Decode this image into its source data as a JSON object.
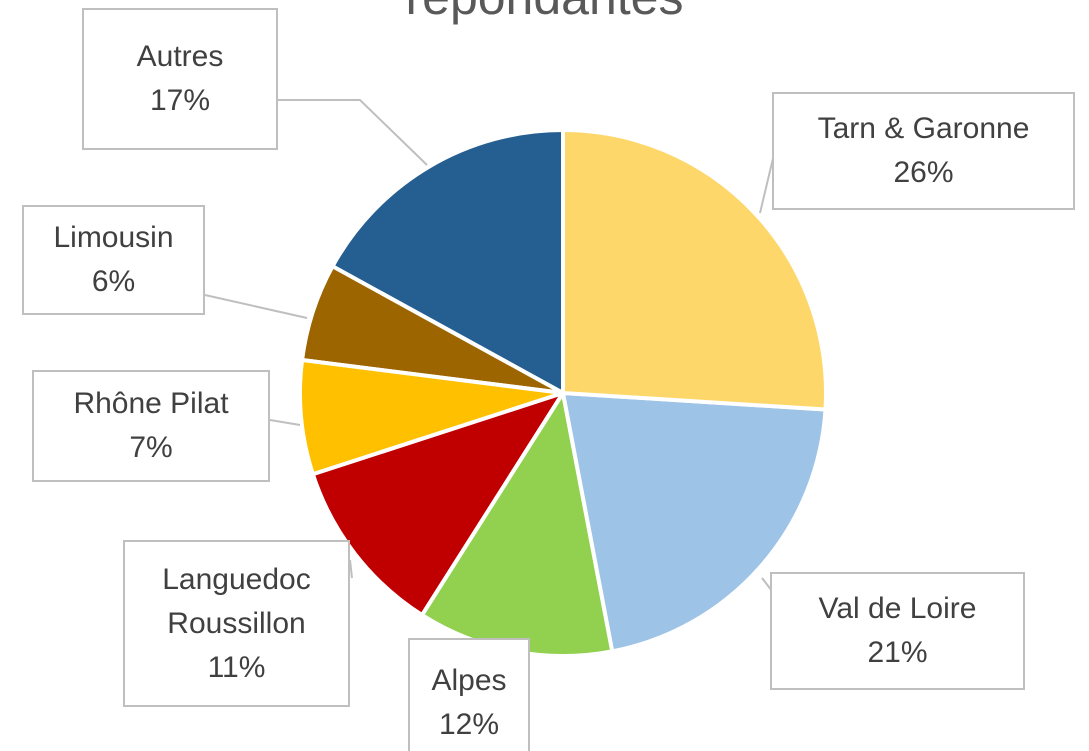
{
  "chart_data": {
    "type": "pie",
    "title": "répondantes",
    "categories": [
      "Tarn & Garonne",
      "Val de Loire",
      "Alpes",
      "Languedoc Roussillon",
      "Rhône Pilat",
      "Limousin",
      "Autres"
    ],
    "values": [
      26,
      21,
      12,
      11,
      7,
      6,
      17
    ],
    "value_labels": [
      "26%",
      "21%",
      "12%",
      "11%",
      "7%",
      "6%",
      "17%"
    ],
    "colors": [
      "#fed76b",
      "#9dc3e6",
      "#92d050",
      "#c00000",
      "#ffc000",
      "#9c6500",
      "#255e91"
    ]
  }
}
